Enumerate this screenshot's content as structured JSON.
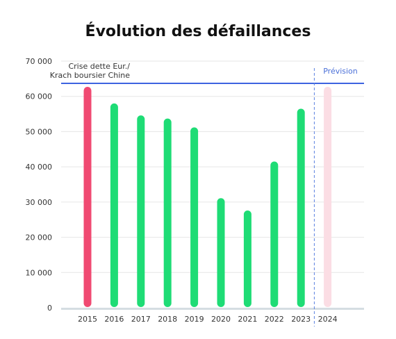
{
  "chart_data": {
    "type": "bar",
    "title": "Évolution des défaillances",
    "categories": [
      "2015",
      "2016",
      "2017",
      "2018",
      "2019",
      "2020",
      "2021",
      "2022",
      "2023",
      "2024"
    ],
    "values": [
      62500,
      57800,
      54400,
      53500,
      51000,
      30900,
      27400,
      41300,
      56300,
      62500
    ],
    "bar_types": [
      "crisis",
      "actual",
      "actual",
      "actual",
      "actual",
      "actual",
      "actual",
      "actual",
      "actual",
      "forecast"
    ],
    "ylim": [
      0,
      70000
    ],
    "yticks": [
      0,
      10000,
      20000,
      30000,
      40000,
      50000,
      60000,
      70000
    ],
    "ytick_labels": [
      "0",
      "10 000",
      "20 000",
      "30 000",
      "40 000",
      "50 000",
      "60 000",
      "70 000"
    ],
    "xlabel": "",
    "ylabel": "",
    "grid": true,
    "reference_line": {
      "value": 63700,
      "label_lines": [
        "Crise dette Eur./",
        "Krach boursier Chine"
      ]
    },
    "forecast_divider": {
      "between": [
        "2023",
        "2024"
      ],
      "label": "Prévision"
    },
    "colors": {
      "actual": "#1edc75",
      "crisis": "#f04a72",
      "forecast": "#fbdde4",
      "reference_line": "#3d63e0",
      "divider": "#5a7fe0",
      "grid": "#e6e6e6",
      "baseline": "#d5dde2"
    }
  }
}
